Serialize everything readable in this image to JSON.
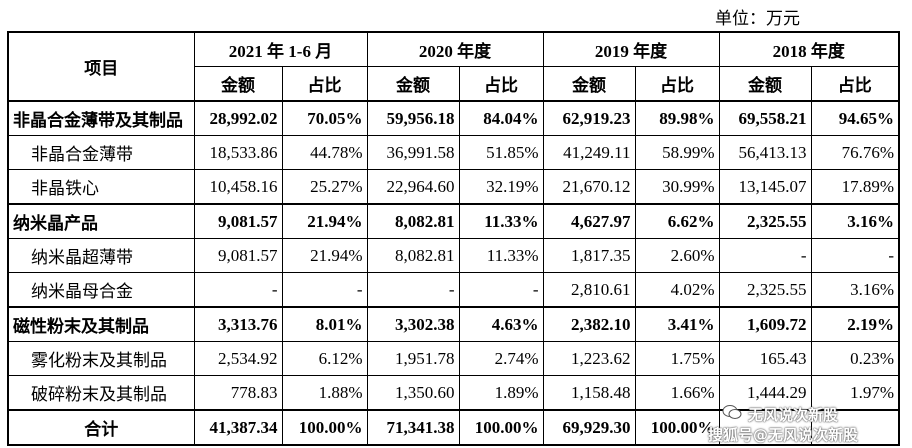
{
  "unit_label": "单位：万元",
  "header": {
    "item": "项目",
    "periods": [
      "2021 年 1-6 月",
      "2020 年度",
      "2019 年度",
      "2018 年度"
    ],
    "amount": "金额",
    "ratio": "占比"
  },
  "rows": [
    {
      "label": "非晶合金薄带及其制品",
      "bold": true,
      "sub": false,
      "cells": [
        "28,992.02",
        "70.05%",
        "59,956.18",
        "84.04%",
        "62,919.23",
        "89.98%",
        "69,558.21",
        "94.65%"
      ]
    },
    {
      "label": "非晶合金薄带",
      "bold": false,
      "sub": true,
      "cells": [
        "18,533.86",
        "44.78%",
        "36,991.58",
        "51.85%",
        "41,249.11",
        "58.99%",
        "56,413.13",
        "76.76%"
      ]
    },
    {
      "label": "非晶铁心",
      "bold": false,
      "sub": true,
      "cells": [
        "10,458.16",
        "25.27%",
        "22,964.60",
        "32.19%",
        "21,670.12",
        "30.99%",
        "13,145.07",
        "17.89%"
      ]
    },
    {
      "label": "纳米晶产品",
      "bold": true,
      "sub": false,
      "cells": [
        "9,081.57",
        "21.94%",
        "8,082.81",
        "11.33%",
        "4,627.97",
        "6.62%",
        "2,325.55",
        "3.16%"
      ]
    },
    {
      "label": "纳米晶超薄带",
      "bold": false,
      "sub": true,
      "cells": [
        "9,081.57",
        "21.94%",
        "8,082.81",
        "11.33%",
        "1,817.35",
        "2.60%",
        "-",
        "-"
      ]
    },
    {
      "label": "纳米晶母合金",
      "bold": false,
      "sub": true,
      "cells": [
        "-",
        "-",
        "-",
        "-",
        "2,810.61",
        "4.02%",
        "2,325.55",
        "3.16%"
      ]
    },
    {
      "label": "磁性粉末及其制品",
      "bold": true,
      "sub": false,
      "cells": [
        "3,313.76",
        "8.01%",
        "3,302.38",
        "4.63%",
        "2,382.10",
        "3.41%",
        "1,609.72",
        "2.19%"
      ]
    },
    {
      "label": "雾化粉末及其制品",
      "bold": false,
      "sub": true,
      "cells": [
        "2,534.92",
        "6.12%",
        "1,951.78",
        "2.74%",
        "1,223.62",
        "1.75%",
        "165.43",
        "0.23%"
      ]
    },
    {
      "label": "破碎粉末及其制品",
      "bold": false,
      "sub": true,
      "cells": [
        "778.83",
        "1.88%",
        "1,350.60",
        "1.89%",
        "1,158.48",
        "1.66%",
        "1,444.29",
        "1.97%"
      ]
    },
    {
      "label": "合计",
      "bold": true,
      "sub": false,
      "center": true,
      "cells": [
        "41,387.34",
        "100.00%",
        "71,341.38",
        "100.00%",
        "69,929.30",
        "100.00%",
        "",
        ""
      ]
    }
  ],
  "watermark": {
    "line1": "无风说次新股",
    "line2": "搜狐号@无风说次新股"
  }
}
